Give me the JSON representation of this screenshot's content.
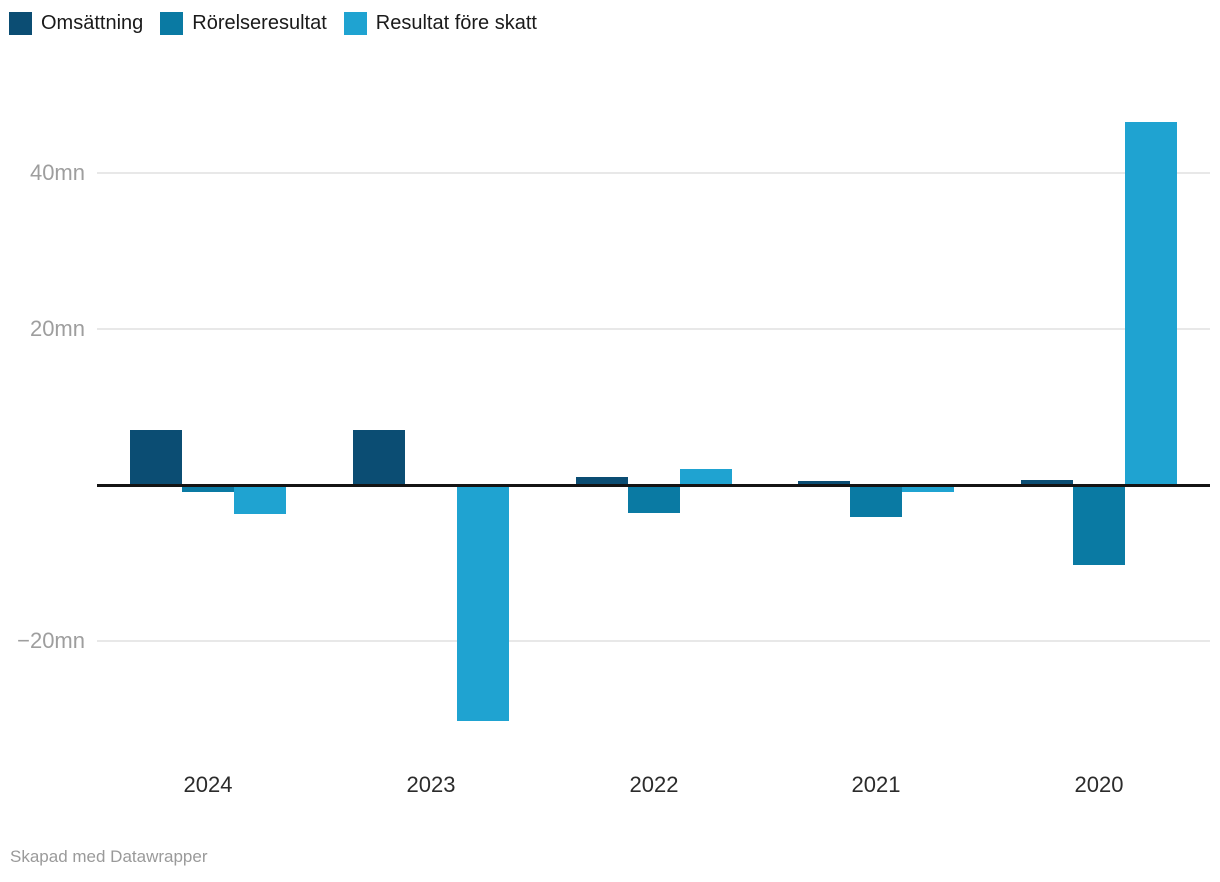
{
  "legend": [
    {
      "label": "Omsättning",
      "color": "#0b4d73"
    },
    {
      "label": "Rörelseresultat",
      "color": "#0a7aa3"
    },
    {
      "label": "Resultat före skatt",
      "color": "#1fa3d1"
    }
  ],
  "footer": {
    "text": "Skapad med Datawrapper"
  },
  "chart_data": {
    "type": "bar",
    "categories": [
      "2024",
      "2023",
      "2022",
      "2021",
      "2020"
    ],
    "series": [
      {
        "name": "Omsättning",
        "color": "#0b4d73",
        "values": [
          7,
          7,
          1,
          0.5,
          0.7
        ]
      },
      {
        "name": "Rörelseresultat",
        "color": "#0a7aa3",
        "values": [
          -0.6,
          0,
          -3.3,
          -3.9,
          -10
        ]
      },
      {
        "name": "Resultat före skatt",
        "color": "#1fa3d1",
        "values": [
          -3.4,
          -30,
          2,
          -0.7,
          46.5
        ]
      }
    ],
    "title": "",
    "xlabel": "",
    "ylabel": "",
    "unit": "mn",
    "y_ticks": [
      {
        "value": 40,
        "label": "40mn"
      },
      {
        "value": 20,
        "label": "20mn"
      },
      {
        "value": -20,
        "label": "−20mn"
      }
    ],
    "ylim": [
      -32,
      48
    ],
    "grid": true,
    "legend_position": "top",
    "baseline_color": "#141414",
    "gridline_color": "#e8e8e8"
  }
}
